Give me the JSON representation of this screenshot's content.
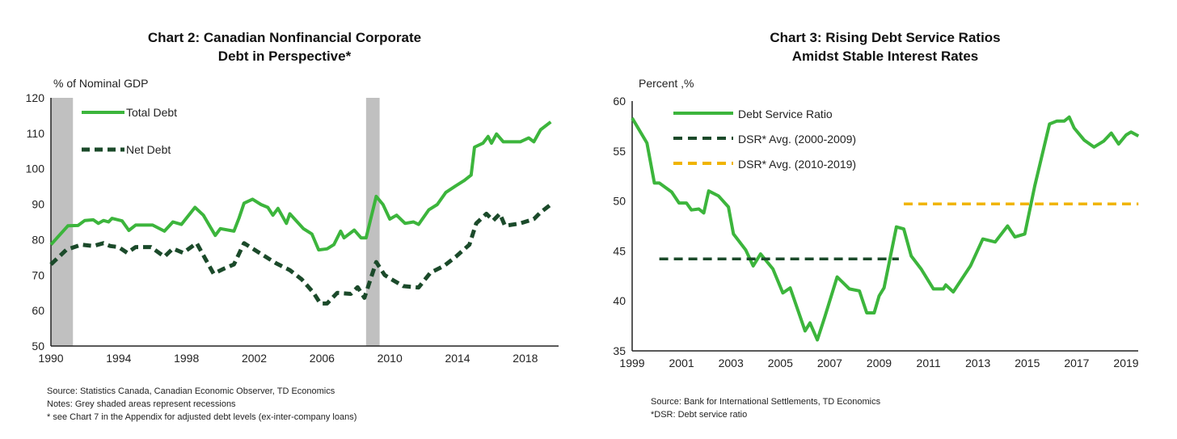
{
  "chart_data": [
    {
      "type": "line",
      "title": "Chart 2: Canadian Nonfinancial  Corporate",
      "title_line2": "Debt in Perspective*",
      "ylabel": "% of Nominal GDP",
      "xlabel": "",
      "ylim": [
        50,
        120
      ],
      "xlim": [
        1990,
        2019.6
      ],
      "yticks": [
        "50",
        "60",
        "70",
        "80",
        "90",
        "100",
        "110",
        "120"
      ],
      "xticks": [
        "1990",
        "1994",
        "1998",
        "2002",
        "2006",
        "2010",
        "2014",
        "2018"
      ],
      "legend_position": "top-left",
      "recessions": [
        [
          1990.0,
          1991.3
        ],
        [
          2008.6,
          2009.4
        ]
      ],
      "recession_color": "#c0c0c0",
      "series": [
        {
          "name": "Total Debt",
          "color": "#3cb53c",
          "style": "solid",
          "points": [
            [
              1990,
              78.6
            ],
            [
              1991,
              83.9
            ],
            [
              1991.6,
              84
            ],
            [
              1992,
              85.4
            ],
            [
              1992.5,
              85.6
            ],
            [
              1992.8,
              84.6
            ],
            [
              1993.1,
              85.4
            ],
            [
              1993.4,
              85
            ],
            [
              1993.6,
              86
            ],
            [
              1994.2,
              85.3
            ],
            [
              1994.6,
              82.6
            ],
            [
              1995,
              84.1
            ],
            [
              1996,
              84.1
            ],
            [
              1996.7,
              82.4
            ],
            [
              1997.2,
              85
            ],
            [
              1997.7,
              84.3
            ],
            [
              1998.5,
              89.1
            ],
            [
              1999,
              86.9
            ],
            [
              1999.7,
              81.2
            ],
            [
              2000,
              83.1
            ],
            [
              2000.8,
              82.4
            ],
            [
              2001.1,
              86.1
            ],
            [
              2001.4,
              90.3
            ],
            [
              2001.9,
              91.4
            ],
            [
              2002.4,
              89.9
            ],
            [
              2002.8,
              89.1
            ],
            [
              2003.1,
              86.9
            ],
            [
              2003.4,
              88.8
            ],
            [
              2003.9,
              84.6
            ],
            [
              2004.1,
              87.3
            ],
            [
              2004.9,
              83.1
            ],
            [
              2005.4,
              81.6
            ],
            [
              2005.8,
              77.1
            ],
            [
              2006.3,
              77.4
            ],
            [
              2006.7,
              78.6
            ],
            [
              2007.1,
              82.4
            ],
            [
              2007.3,
              80.5
            ],
            [
              2007.9,
              82.7
            ],
            [
              2008.3,
              80.5
            ],
            [
              2008.6,
              80.5
            ],
            [
              2009.2,
              92.2
            ],
            [
              2009.6,
              89.9
            ],
            [
              2010,
              85.8
            ],
            [
              2010.4,
              86.9
            ],
            [
              2010.9,
              84.6
            ],
            [
              2011.4,
              85
            ],
            [
              2011.7,
              84.3
            ],
            [
              2012.3,
              88.4
            ],
            [
              2012.8,
              89.9
            ],
            [
              2013.3,
              93.3
            ],
            [
              2013.9,
              95.2
            ],
            [
              2014.4,
              96.7
            ],
            [
              2014.8,
              98.2
            ],
            [
              2015,
              106.1
            ],
            [
              2015.5,
              107.2
            ],
            [
              2015.8,
              109.1
            ],
            [
              2016,
              107.2
            ],
            [
              2016.3,
              109.8
            ],
            [
              2016.7,
              107.6
            ],
            [
              2017.7,
              107.6
            ],
            [
              2018.2,
              108.7
            ],
            [
              2018.5,
              107.6
            ],
            [
              2018.9,
              111
            ],
            [
              2019.5,
              113.2
            ]
          ]
        },
        {
          "name": "Net Debt",
          "color": "#1b4a2a",
          "style": "dashed",
          "points": [
            [
              1990,
              73
            ],
            [
              1990.9,
              77.1
            ],
            [
              1991.8,
              78.6
            ],
            [
              1992.5,
              78.2
            ],
            [
              1993.1,
              79
            ],
            [
              1993.5,
              78.2
            ],
            [
              1994,
              77.9
            ],
            [
              1994.5,
              76.3
            ],
            [
              1995,
              77.9
            ],
            [
              1995.9,
              77.9
            ],
            [
              1996.7,
              75.2
            ],
            [
              1997.2,
              77.5
            ],
            [
              1997.8,
              76.3
            ],
            [
              1998.6,
              79
            ],
            [
              1999.6,
              70.4
            ],
            [
              2000.2,
              71.8
            ],
            [
              2000.8,
              73
            ],
            [
              2001.4,
              79
            ],
            [
              2002.4,
              76
            ],
            [
              2003.3,
              73.3
            ],
            [
              2004.1,
              71.4
            ],
            [
              2004.8,
              68.8
            ],
            [
              2005.5,
              65
            ],
            [
              2005.9,
              62
            ],
            [
              2006.3,
              62
            ],
            [
              2006.9,
              65
            ],
            [
              2007.7,
              64.7
            ],
            [
              2008.1,
              66.6
            ],
            [
              2008.5,
              63.6
            ],
            [
              2009.2,
              73.7
            ],
            [
              2009.7,
              70
            ],
            [
              2010.1,
              68.8
            ],
            [
              2010.8,
              66.9
            ],
            [
              2011.7,
              66.5
            ],
            [
              2012.4,
              70.7
            ],
            [
              2013.2,
              72.6
            ],
            [
              2013.9,
              75.2
            ],
            [
              2014.7,
              78.6
            ],
            [
              2015.1,
              84.6
            ],
            [
              2015.7,
              87.3
            ],
            [
              2016.1,
              85.4
            ],
            [
              2016.5,
              87.3
            ],
            [
              2016.8,
              83.9
            ],
            [
              2017.7,
              84.6
            ],
            [
              2018.5,
              85.8
            ],
            [
              2018.9,
              87.7
            ],
            [
              2019.5,
              89.9
            ]
          ]
        }
      ],
      "notes": [
        "Source:  Statistics Canada,  Canadian  Economic  Observer, TD Economics",
        "Notes:  Grey shaded areas represent recessions",
        "* see Chart  7 in the Appendix  for adjusted debt levels (ex-inter-company  loans)"
      ]
    },
    {
      "type": "line",
      "title": "Chart 3: Rising Debt Service Ratios",
      "title_line2": "Amidst  Stable Interest Rates",
      "ylabel": "Percent ,%",
      "xlabel": "",
      "ylim": [
        35,
        60
      ],
      "xlim": [
        1999,
        2019.5
      ],
      "yticks": [
        "35",
        "40",
        "45",
        "50",
        "55",
        "60"
      ],
      "xticks": [
        "1999",
        "2001",
        "2003",
        "2005",
        "2007",
        "2009",
        "2011",
        "2013",
        "2015",
        "2017",
        "2019"
      ],
      "legend_position": "top-left",
      "series": [
        {
          "name": "Debt Service Ratio",
          "color": "#3cb53c",
          "style": "solid",
          "points": [
            [
              1999,
              58.3
            ],
            [
              1999.6,
              55.8
            ],
            [
              1999.9,
              51.8
            ],
            [
              2000.1,
              51.8
            ],
            [
              2000.6,
              50.9
            ],
            [
              2000.9,
              49.8
            ],
            [
              2001.2,
              49.8
            ],
            [
              2001.4,
              49.1
            ],
            [
              2001.7,
              49.2
            ],
            [
              2001.9,
              48.8
            ],
            [
              2002.1,
              51
            ],
            [
              2002.5,
              50.5
            ],
            [
              2002.9,
              49.4
            ],
            [
              2003.1,
              46.7
            ],
            [
              2003.6,
              45.1
            ],
            [
              2003.9,
              43.5
            ],
            [
              2004.2,
              44.7
            ],
            [
              2004.7,
              43.2
            ],
            [
              2005.1,
              40.8
            ],
            [
              2005.4,
              41.3
            ],
            [
              2006,
              37
            ],
            [
              2006.2,
              37.8
            ],
            [
              2006.5,
              36.1
            ],
            [
              2006.8,
              38.4
            ],
            [
              2007.3,
              42.4
            ],
            [
              2007.8,
              41.2
            ],
            [
              2008.2,
              41
            ],
            [
              2008.5,
              38.8
            ],
            [
              2008.8,
              38.8
            ],
            [
              2009,
              40.5
            ],
            [
              2009.2,
              41.3
            ],
            [
              2009.7,
              47.4
            ],
            [
              2010,
              47.2
            ],
            [
              2010.3,
              44.5
            ],
            [
              2010.7,
              43.2
            ],
            [
              2011.2,
              41.2
            ],
            [
              2011.6,
              41.2
            ],
            [
              2011.7,
              41.6
            ],
            [
              2012,
              40.9
            ],
            [
              2012.7,
              43.5
            ],
            [
              2013.2,
              46.2
            ],
            [
              2013.7,
              45.9
            ],
            [
              2014.2,
              47.5
            ],
            [
              2014.5,
              46.4
            ],
            [
              2014.9,
              46.7
            ],
            [
              2015.3,
              51.5
            ],
            [
              2015.9,
              57.7
            ],
            [
              2016.2,
              58
            ],
            [
              2016.5,
              58
            ],
            [
              2016.7,
              58.4
            ],
            [
              2016.9,
              57.3
            ],
            [
              2017.3,
              56.1
            ],
            [
              2017.7,
              55.4
            ],
            [
              2018.1,
              56
            ],
            [
              2018.4,
              56.8
            ],
            [
              2018.7,
              55.7
            ],
            [
              2019,
              56.6
            ],
            [
              2019.2,
              56.9
            ],
            [
              2019.5,
              56.5
            ]
          ]
        },
        {
          "name": "DSR* Avg. (2000-2009)",
          "color": "#1b4a2a",
          "style": "dashed",
          "points": [
            [
              2000.1,
              44.2
            ],
            [
              2009.8,
              44.2
            ]
          ]
        },
        {
          "name": "DSR* Avg. (2010-2019)",
          "color": "#f0b400",
          "style": "dashed",
          "points": [
            [
              2010.0,
              49.7
            ],
            [
              2019.5,
              49.7
            ]
          ]
        }
      ],
      "notes": [
        "Source:  Bank for International  Settlements,  TD Economics",
        "*DSR:  Debt service ratio"
      ]
    }
  ]
}
